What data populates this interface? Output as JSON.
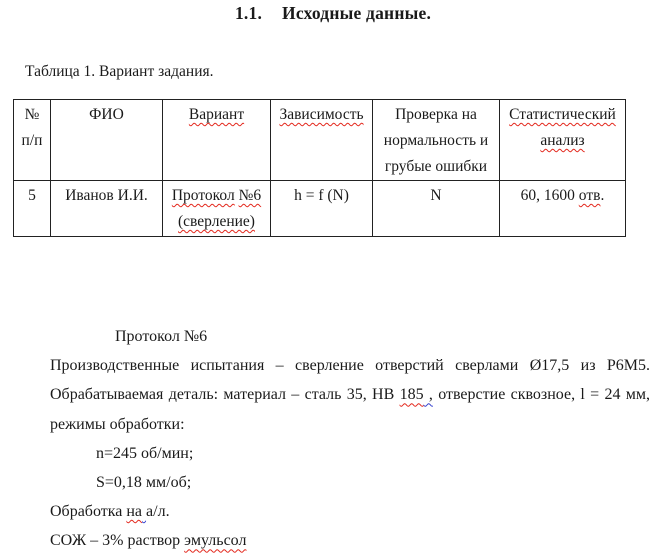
{
  "page": {
    "heading_number": "1.1.",
    "heading_text": "Исходные данные.",
    "table_caption": "Таблица 1. Вариант задания."
  },
  "table": {
    "headers": {
      "num_line1": "№",
      "num_line2": "п/п",
      "fio": "ФИО",
      "variant": "Вариант",
      "dependency": "Зависимость",
      "check": "Проверка на нормальность и грубые ошибки",
      "stat_word1": "Статистический",
      "stat_word2": "анализ"
    },
    "row": {
      "num": "5",
      "fio": "Иванов И.И.",
      "variant_word1": "Протокол",
      "variant_word2": "№6",
      "variant_line2": "(сверление)",
      "dependency": "h = f (N)",
      "check": "N",
      "stat_prefix": "60, 1600",
      "stat_word": "отв",
      "stat_suffix": "."
    }
  },
  "protocol": {
    "title": "Протокол №6",
    "line1": "Производственные испытания – сверление отверстий сверлами Ø17,5 из Р6М5.",
    "line2_part1": "Обрабатываемая деталь: материал – сталь 35, НВ",
    "line2_num": "185",
    "line2_comma": " ,",
    "line2_part2": "отверстие сквозное, l = 24 мм,",
    "line3": "режимы обработки:",
    "mode1": "n=245 об/мин;",
    "mode2": "S=0,18 мм/об;",
    "line4_part1": "Обработка",
    "line4_word": "на",
    "line4_space": " ",
    "line4_part2": "а/л.",
    "line5_part1": "СОЖ – 3% раствор",
    "line5_word": "эмульсол"
  }
}
